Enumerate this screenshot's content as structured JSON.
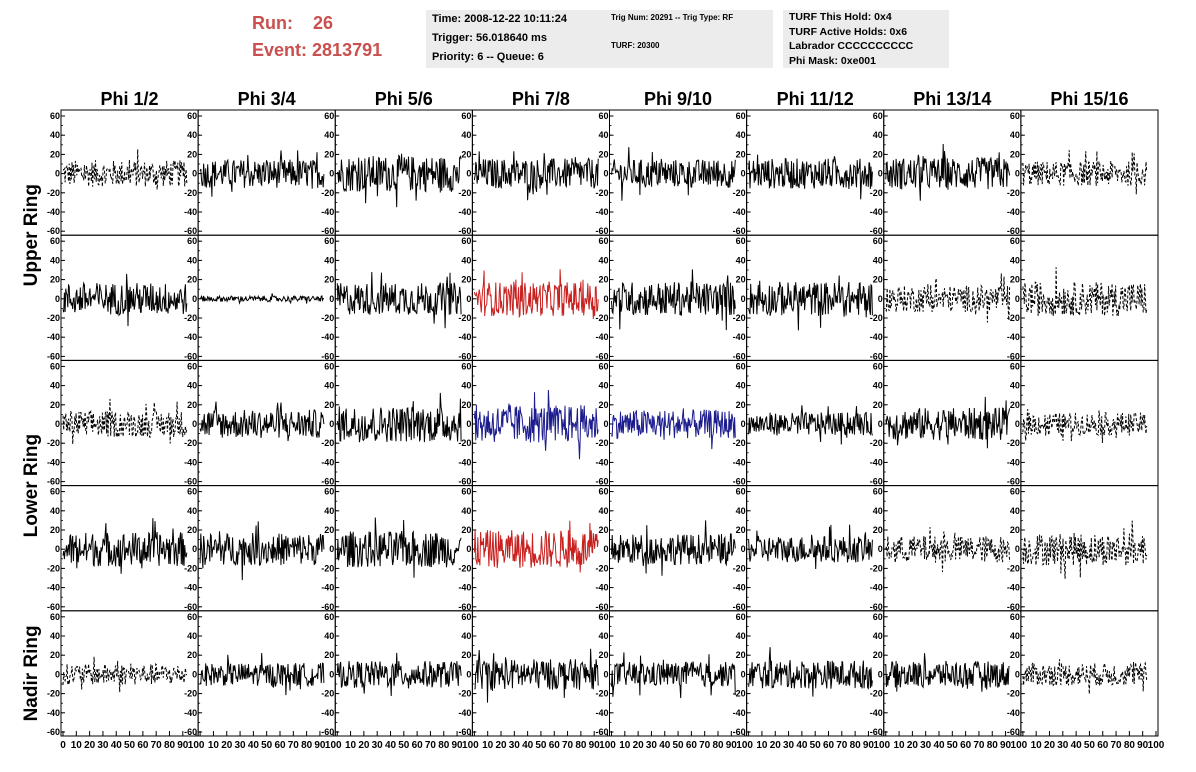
{
  "header": {
    "run_label": "Run:",
    "run_value": "26",
    "event_label": "Event:",
    "event_value": "2813791"
  },
  "info_box_1": {
    "time": "Time: 2008-12-22 10:11:24",
    "trigger": "Trigger: 56.018640 ms",
    "priority": "Priority: 6 -- Queue: 6"
  },
  "info_box_2": {
    "trig_num": "Trig Num: 20291 -- Trig Type: RF",
    "turf": "TURF: 20300"
  },
  "info_box_3": {
    "this_hold": "TURF This Hold: 0x4",
    "active_holds": "TURF Active Holds: 0x6",
    "labrador": "Labrador CCCCCCCCCC",
    "phi_mask": "Phi Mask: 0xe001"
  },
  "colors": {
    "header_text": "#c9504f",
    "info_bg": "#ececec",
    "trace_default": "#000000",
    "trace_red": "#c8201e",
    "trace_blue": "#1c1c8e"
  },
  "chart_data": {
    "type": "line",
    "description_free": true,
    "columns": [
      "Phi 1/2",
      "Phi 3/4",
      "Phi 5/6",
      "Phi 7/8",
      "Phi 9/10",
      "Phi 11/12",
      "Phi 13/14",
      "Phi 15/16"
    ],
    "ring_labels": [
      {
        "text": "Upper Ring",
        "rows": [
          0,
          1
        ]
      },
      {
        "text": "Lower Ring",
        "rows": [
          2,
          3
        ]
      },
      {
        "text": "Nadir Ring",
        "rows": [
          4,
          4
        ]
      }
    ],
    "xlim": [
      0,
      100
    ],
    "ylim": [
      -60,
      60
    ],
    "y_ticks": [
      -60,
      -40,
      -20,
      0,
      20,
      40,
      60
    ],
    "x_ticks": [
      0,
      10,
      20,
      30,
      40,
      50,
      60,
      70,
      80,
      90,
      100
    ],
    "trace_x_range": [
      0,
      93
    ],
    "panels": [
      [
        {
          "amp": 14,
          "style": "dashed",
          "color": "black"
        },
        {
          "amp": 15,
          "style": "solid",
          "color": "black"
        },
        {
          "amp": 19,
          "style": "solid",
          "color": "black"
        },
        {
          "amp": 16,
          "style": "solid",
          "color": "black"
        },
        {
          "amp": 15,
          "style": "solid",
          "color": "black"
        },
        {
          "amp": 16,
          "style": "solid",
          "color": "black"
        },
        {
          "amp": 17,
          "style": "solid",
          "color": "black"
        },
        {
          "amp": 13,
          "style": "dashed",
          "color": "black"
        }
      ],
      [
        {
          "amp": 17,
          "style": "solid",
          "color": "black"
        },
        {
          "amp": 3,
          "style": "solid",
          "color": "black"
        },
        {
          "amp": 17,
          "style": "solid",
          "color": "black"
        },
        {
          "amp": 18,
          "style": "solid",
          "color": "red"
        },
        {
          "amp": 18,
          "style": "solid",
          "color": "black"
        },
        {
          "amp": 18,
          "style": "solid",
          "color": "black"
        },
        {
          "amp": 14,
          "style": "dashed",
          "color": "black"
        },
        {
          "amp": 18,
          "style": "dashed",
          "color": "black"
        }
      ],
      [
        {
          "amp": 14,
          "style": "dashed",
          "color": "black"
        },
        {
          "amp": 15,
          "style": "solid",
          "color": "black"
        },
        {
          "amp": 19,
          "style": "solid",
          "color": "black"
        },
        {
          "amp": 20,
          "style": "solid",
          "color": "blue"
        },
        {
          "amp": 15,
          "style": "solid",
          "color": "blue"
        },
        {
          "amp": 12,
          "style": "solid",
          "color": "black"
        },
        {
          "amp": 17,
          "style": "solid",
          "color": "black"
        },
        {
          "amp": 12,
          "style": "dashed",
          "color": "black"
        }
      ],
      [
        {
          "amp": 18,
          "style": "solid",
          "color": "black"
        },
        {
          "amp": 17,
          "style": "solid",
          "color": "black"
        },
        {
          "amp": 19,
          "style": "solid",
          "color": "black"
        },
        {
          "amp": 20,
          "style": "solid",
          "color": "red"
        },
        {
          "amp": 16,
          "style": "solid",
          "color": "black"
        },
        {
          "amp": 14,
          "style": "solid",
          "color": "black"
        },
        {
          "amp": 14,
          "style": "dashed",
          "color": "black"
        },
        {
          "amp": 17,
          "style": "dashed",
          "color": "black"
        }
      ],
      [
        {
          "amp": 11,
          "style": "dashed",
          "color": "black"
        },
        {
          "amp": 12,
          "style": "solid",
          "color": "black"
        },
        {
          "amp": 14,
          "style": "solid",
          "color": "black"
        },
        {
          "amp": 16,
          "style": "solid",
          "color": "black"
        },
        {
          "amp": 13,
          "style": "solid",
          "color": "black"
        },
        {
          "amp": 15,
          "style": "solid",
          "color": "black"
        },
        {
          "amp": 14,
          "style": "solid",
          "color": "black"
        },
        {
          "amp": 12,
          "style": "dashed",
          "color": "black"
        }
      ]
    ]
  }
}
